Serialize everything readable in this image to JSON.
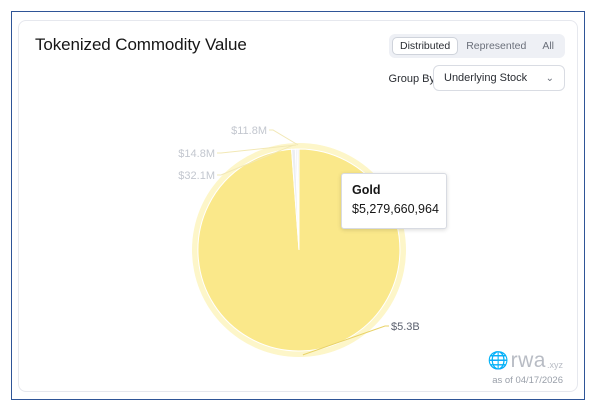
{
  "card": {
    "title": "Tokenized Commodity Value",
    "tabs": [
      {
        "label": "Distributed",
        "active": true
      },
      {
        "label": "Represented",
        "active": false
      },
      {
        "label": "All",
        "active": false
      }
    ],
    "group_by_label": "Group By",
    "group_by_value": "Underlying Stock"
  },
  "tooltip": {
    "name": "Gold",
    "value": "$5,279,660,964"
  },
  "brand": {
    "main": "rwa",
    "sub": ".xyz"
  },
  "as_of": "as of 04/17/2026",
  "colors": {
    "gold": "#fae88a",
    "halo": "#fdf6c9",
    "other": "#eceef2",
    "accent": "#2f5597"
  },
  "chart_data": {
    "type": "pie",
    "slices": [
      {
        "label": "Gold",
        "value": 5279660964,
        "data_label": "$5.3B",
        "color": "#fae88a"
      },
      {
        "label": "",
        "value": 32100000,
        "data_label": "$32.1M",
        "color": "#eceef2"
      },
      {
        "label": "",
        "value": 14800000,
        "data_label": "$14.8M",
        "color": "#eceef2"
      },
      {
        "label": "",
        "value": 11800000,
        "data_label": "$11.8M",
        "color": "#eceef2"
      }
    ]
  }
}
